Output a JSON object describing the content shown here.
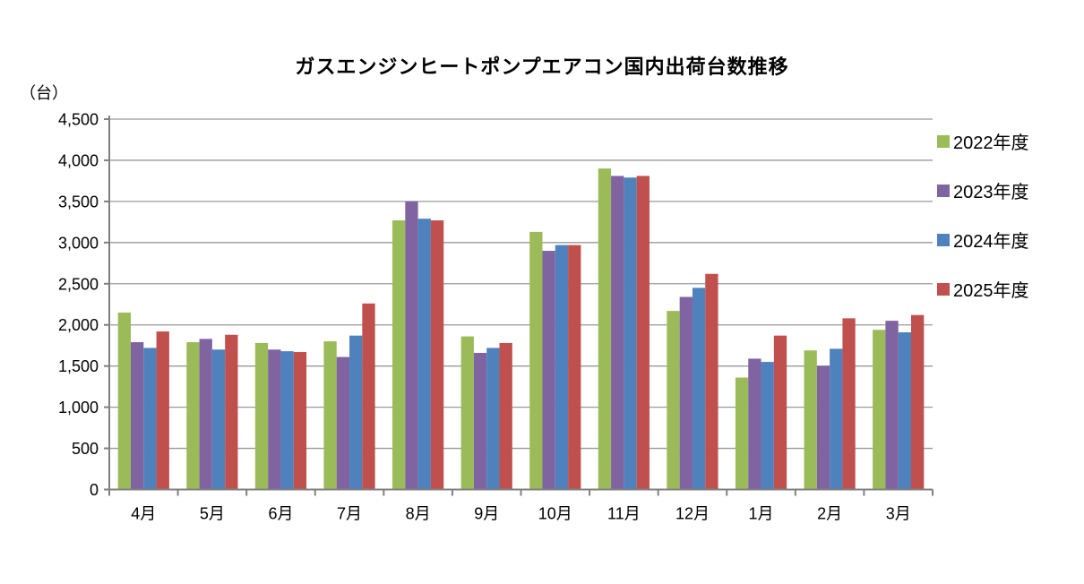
{
  "chart_data": {
    "type": "bar",
    "title": "ガスエンジンヒートポンプエアコン国内出荷台数推移",
    "unit_label": "（台）",
    "categories": [
      "4月",
      "5月",
      "6月",
      "7月",
      "8月",
      "9月",
      "10月",
      "11月",
      "12月",
      "1月",
      "2月",
      "3月"
    ],
    "series": [
      {
        "name": "2022年度",
        "color": "#9BBB59",
        "values": [
          2150,
          1790,
          1780,
          1800,
          3270,
          1860,
          3130,
          3900,
          2170,
          1360,
          1690,
          1940
        ]
      },
      {
        "name": "2023年度",
        "color": "#8064A2",
        "values": [
          1790,
          1830,
          1700,
          1610,
          3500,
          1660,
          2900,
          3810,
          2340,
          1590,
          1500,
          2050
        ]
      },
      {
        "name": "2024年度",
        "color": "#4F81BD",
        "values": [
          1720,
          1700,
          1680,
          1870,
          3290,
          1720,
          2970,
          3790,
          2450,
          1550,
          1710,
          1910
        ]
      },
      {
        "name": "2025年度",
        "color": "#C0504D",
        "values": [
          1920,
          1880,
          1670,
          2260,
          3270,
          1780,
          2970,
          3810,
          2620,
          1870,
          2080,
          2120
        ]
      }
    ],
    "ylim": [
      0,
      4500
    ],
    "ytick_interval": 500,
    "ytick_labels": [
      "0",
      "500",
      "1,000",
      "1,500",
      "2,000",
      "2,500",
      "3,000",
      "3,500",
      "4,000",
      "4,500"
    ],
    "grid": true,
    "legend_position": "right",
    "colors": {
      "gridline": "#999999",
      "axis": "#808080",
      "text": "#000000",
      "background": "#FFFFFF"
    }
  }
}
